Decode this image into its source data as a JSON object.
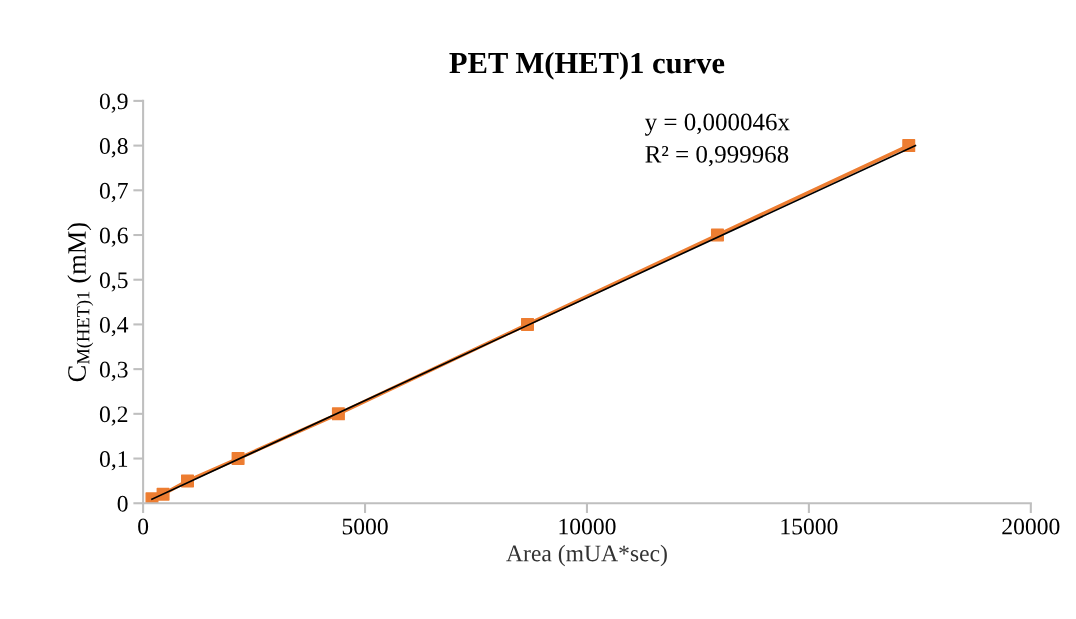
{
  "chart_data": {
    "type": "line",
    "title": "PET M(HET)1 curve",
    "xlabel": "Area (mUA*sec)",
    "ylabel": "C$_{M(HET)1}$ (mM)",
    "series": [
      {
        "color": "#ed7d31",
        "marker": "square",
        "x": [
          200,
          450,
          1000,
          2140,
          4400,
          8660,
          12940,
          17250
        ],
        "values": [
          0.01,
          0.02,
          0.05,
          0.1,
          0.2,
          0.4,
          0.6,
          0.8
        ]
      },
      {
        "color": "#000000",
        "marker": "none",
        "x": [
          200,
          17400
        ],
        "values": [
          0.009,
          0.8
        ]
      }
    ],
    "annotations": [
      "y = 0,000046x",
      "R² = 0,999968"
    ],
    "xlim": [
      0,
      20000
    ],
    "xticks": [
      0,
      5000,
      10000,
      15000,
      20000
    ],
    "ylim": [
      0,
      0.9
    ],
    "yticks": [
      0,
      {
        "value": 0.1,
        "label": "0,1"
      },
      {
        "value": 0.2,
        "label": "0,2"
      },
      {
        "value": 0.3,
        "label": "0,3"
      },
      {
        "value": 0.4,
        "label": "0,4"
      },
      {
        "value": 0.5,
        "label": "0,5"
      },
      {
        "value": 0.6,
        "label": "0,6"
      },
      {
        "value": 0.7,
        "label": "0,7"
      },
      {
        "value": 0.8,
        "label": "0,8"
      },
      {
        "value": 0.9,
        "label": "0,9"
      }
    ],
    "grid": false,
    "legend": false
  }
}
